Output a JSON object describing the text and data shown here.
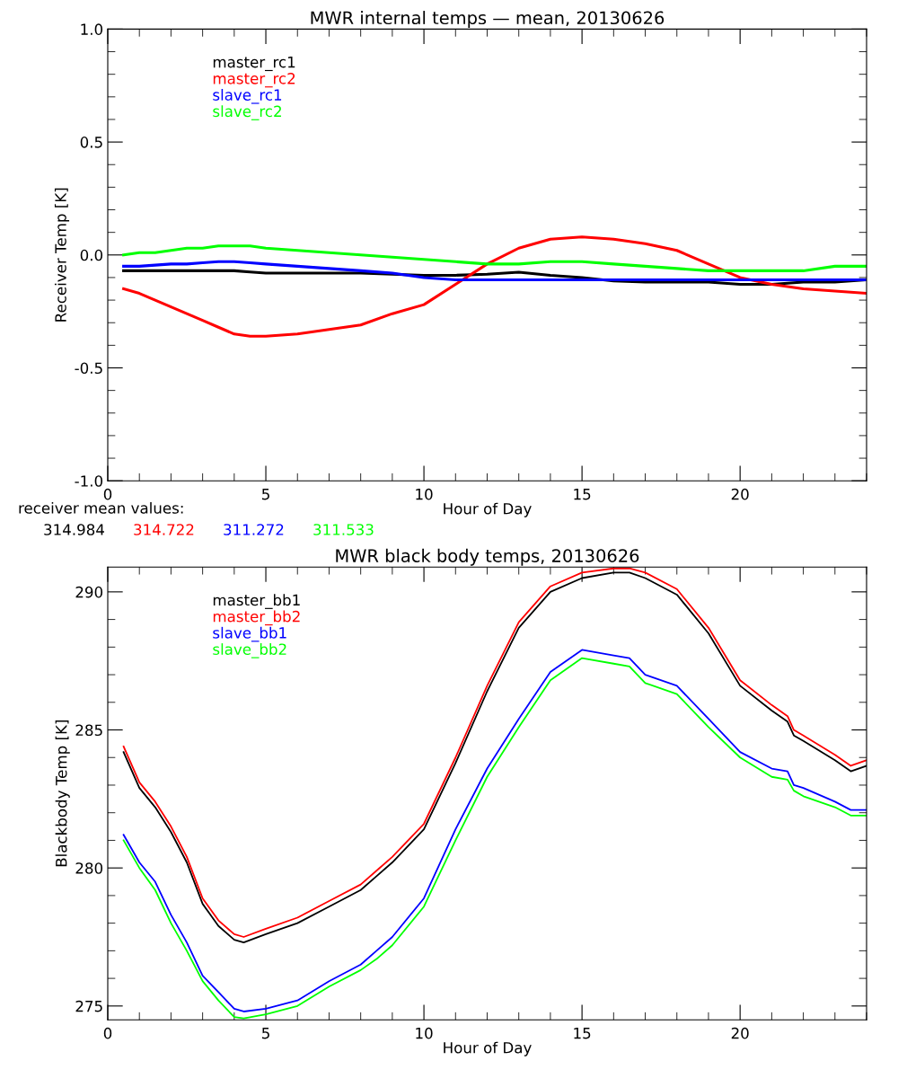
{
  "chart_data": [
    {
      "type": "line",
      "title": "MWR internal temps — mean, 20130626",
      "xlabel": "Hour of Day",
      "ylabel": "Receiver Temp [K]",
      "legend": "top left",
      "grid": false,
      "x": [
        0.5,
        1,
        1.5,
        2,
        2.5,
        3,
        3.5,
        4,
        4.5,
        5,
        6,
        7,
        8,
        9,
        10,
        11,
        12,
        13,
        14,
        15,
        16,
        17,
        18,
        19,
        20,
        21,
        22,
        23,
        24
      ],
      "xlim": [
        0,
        24
      ],
      "ylim": [
        -1.0,
        1.0
      ],
      "xticks": [
        0,
        {
          "value": 1,
          "label": null
        },
        {
          "value": 2,
          "label": null
        },
        {
          "value": 3,
          "label": null
        },
        {
          "value": 4,
          "label": null
        },
        5,
        {
          "value": 6,
          "label": null
        },
        {
          "value": 7,
          "label": null
        },
        {
          "value": 8,
          "label": null
        },
        {
          "value": 9,
          "label": null
        },
        10,
        {
          "value": 11,
          "label": null
        },
        {
          "value": 12,
          "label": null
        },
        {
          "value": 13,
          "label": null
        },
        {
          "value": 14,
          "label": null
        },
        15,
        {
          "value": 16,
          "label": null
        },
        {
          "value": 17,
          "label": null
        },
        {
          "value": 18,
          "label": null
        },
        {
          "value": 19,
          "label": null
        },
        20,
        {
          "value": 21,
          "label": null
        },
        {
          "value": 22,
          "label": null
        },
        {
          "value": 23,
          "label": null
        },
        {
          "value": 24,
          "label": null
        }
      ],
      "yticks": [
        {
          "value": -1.0,
          "label": "-1.0"
        },
        {
          "value": -0.9,
          "label": null
        },
        {
          "value": -0.8,
          "label": null
        },
        {
          "value": -0.7,
          "label": null
        },
        {
          "value": -0.6,
          "label": null
        },
        {
          "value": -0.5,
          "label": "-0.5"
        },
        {
          "value": -0.4,
          "label": null
        },
        {
          "value": -0.3,
          "label": null
        },
        {
          "value": -0.2,
          "label": null
        },
        {
          "value": -0.1,
          "label": null
        },
        {
          "value": 0.0,
          "label": "0.0"
        },
        {
          "value": 0.1,
          "label": null
        },
        {
          "value": 0.2,
          "label": null
        },
        {
          "value": 0.3,
          "label": null
        },
        {
          "value": 0.4,
          "label": null
        },
        {
          "value": 0.5,
          "label": "0.5"
        },
        {
          "value": 0.6,
          "label": null
        },
        {
          "value": 0.7,
          "label": null
        },
        {
          "value": 0.8,
          "label": null
        },
        {
          "value": 0.9,
          "label": null
        },
        {
          "value": 1.0,
          "label": "1.0"
        }
      ],
      "annotations": [
        "receiver mean values:",
        "314.984",
        "314.722",
        "311.272",
        "311.533"
      ],
      "series": [
        {
          "name": "master_rc1",
          "color": "#000000",
          "values": [
            -0.07,
            -0.07,
            -0.07,
            -0.07,
            -0.07,
            -0.07,
            -0.07,
            -0.07,
            -0.075,
            -0.08,
            -0.08,
            -0.08,
            -0.08,
            -0.085,
            -0.09,
            -0.09,
            -0.085,
            -0.076,
            -0.09,
            -0.1,
            -0.115,
            -0.12,
            -0.12,
            -0.12,
            -0.13,
            -0.13,
            -0.12,
            -0.12,
            -0.11
          ]
        },
        {
          "name": "master_rc2",
          "color": "#ff0000",
          "values": [
            -0.15,
            -0.17,
            -0.2,
            -0.23,
            -0.26,
            -0.29,
            -0.32,
            -0.35,
            -0.36,
            -0.36,
            -0.35,
            -0.33,
            -0.31,
            -0.26,
            -0.22,
            -0.13,
            -0.04,
            0.03,
            0.07,
            0.08,
            0.07,
            0.05,
            0.02,
            -0.04,
            -0.1,
            -0.13,
            -0.15,
            -0.16,
            -0.17
          ]
        },
        {
          "name": "slave_rc1",
          "color": "#0000ff",
          "values": [
            -0.05,
            -0.05,
            -0.045,
            -0.04,
            -0.04,
            -0.035,
            -0.03,
            -0.03,
            -0.035,
            -0.04,
            -0.05,
            -0.06,
            -0.07,
            -0.08,
            -0.1,
            -0.11,
            -0.11,
            -0.11,
            -0.11,
            -0.11,
            -0.11,
            -0.11,
            -0.11,
            -0.11,
            -0.11,
            -0.11,
            -0.11,
            -0.11,
            -0.11
          ]
        },
        {
          "name": "slave_rc2",
          "color": "#00ff00",
          "values": [
            0.0,
            0.01,
            0.01,
            0.02,
            0.03,
            0.03,
            0.04,
            0.04,
            0.04,
            0.03,
            0.02,
            0.01,
            0.0,
            -0.01,
            -0.02,
            -0.03,
            -0.04,
            -0.04,
            -0.03,
            -0.03,
            -0.04,
            -0.05,
            -0.06,
            -0.07,
            -0.07,
            -0.07,
            -0.07,
            -0.05,
            -0.05
          ]
        }
      ]
    },
    {
      "type": "line",
      "title": "MWR black body temps, 20130626",
      "xlabel": "Hour of Day",
      "ylabel": "Blackbody Temp [K]",
      "legend": "top left",
      "grid": false,
      "x": [
        0.5,
        1,
        1.5,
        2,
        2.5,
        3,
        3.5,
        4,
        4.3,
        5,
        6,
        7,
        8,
        8.5,
        9,
        10,
        11,
        12,
        13,
        14,
        15,
        16,
        16.5,
        17,
        18,
        19,
        20,
        21,
        21.5,
        21.7,
        22,
        23,
        23.5,
        24
      ],
      "xlim": [
        0,
        24
      ],
      "ylim": [
        274.5,
        290.9
      ],
      "xticks": [
        0,
        {
          "value": 1,
          "label": null
        },
        {
          "value": 2,
          "label": null
        },
        {
          "value": 3,
          "label": null
        },
        {
          "value": 4,
          "label": null
        },
        5,
        {
          "value": 6,
          "label": null
        },
        {
          "value": 7,
          "label": null
        },
        {
          "value": 8,
          "label": null
        },
        {
          "value": 9,
          "label": null
        },
        10,
        {
          "value": 11,
          "label": null
        },
        {
          "value": 12,
          "label": null
        },
        {
          "value": 13,
          "label": null
        },
        {
          "value": 14,
          "label": null
        },
        15,
        {
          "value": 16,
          "label": null
        },
        {
          "value": 17,
          "label": null
        },
        {
          "value": 18,
          "label": null
        },
        {
          "value": 19,
          "label": null
        },
        20,
        {
          "value": 21,
          "label": null
        },
        {
          "value": 22,
          "label": null
        },
        {
          "value": 23,
          "label": null
        },
        {
          "value": 24,
          "label": null
        }
      ],
      "yticks": [
        275,
        {
          "value": 276,
          "label": null
        },
        {
          "value": 277,
          "label": null
        },
        {
          "value": 278,
          "label": null
        },
        {
          "value": 279,
          "label": null
        },
        280,
        {
          "value": 281,
          "label": null
        },
        {
          "value": 282,
          "label": null
        },
        {
          "value": 283,
          "label": null
        },
        {
          "value": 284,
          "label": null
        },
        285,
        {
          "value": 286,
          "label": null
        },
        {
          "value": 287,
          "label": null
        },
        {
          "value": 288,
          "label": null
        },
        {
          "value": 289,
          "label": null
        },
        290
      ],
      "series": [
        {
          "name": "master_bb1",
          "color": "#000000",
          "values": [
            284.2,
            282.9,
            282.2,
            281.3,
            280.2,
            278.7,
            277.9,
            277.4,
            277.3,
            277.6,
            278.0,
            278.6,
            279.2,
            279.7,
            280.2,
            281.4,
            283.8,
            286.4,
            288.7,
            290.0,
            290.5,
            290.7,
            290.7,
            290.5,
            289.9,
            288.5,
            286.6,
            285.7,
            285.3,
            284.8,
            284.6,
            283.9,
            283.5,
            283.7
          ]
        },
        {
          "name": "master_bb2",
          "color": "#ff0000",
          "values": [
            284.4,
            283.1,
            282.4,
            281.5,
            280.4,
            278.9,
            278.1,
            277.6,
            277.5,
            277.8,
            278.2,
            278.8,
            279.4,
            279.9,
            280.4,
            281.6,
            284.0,
            286.6,
            288.9,
            290.2,
            290.7,
            290.85,
            290.85,
            290.7,
            290.1,
            288.7,
            286.8,
            285.9,
            285.5,
            285.0,
            284.8,
            284.1,
            283.7,
            283.9
          ]
        },
        {
          "name": "slave_bb1",
          "color": "#0000ff",
          "values": [
            281.2,
            280.2,
            279.5,
            278.3,
            277.3,
            276.1,
            275.5,
            274.9,
            274.8,
            274.9,
            275.2,
            275.9,
            276.5,
            277.0,
            277.5,
            278.9,
            281.4,
            283.6,
            285.4,
            287.1,
            287.9,
            287.7,
            287.6,
            287.0,
            286.6,
            285.4,
            284.2,
            283.6,
            283.5,
            283.0,
            282.9,
            282.4,
            282.1,
            282.1
          ]
        },
        {
          "name": "slave_bb2",
          "color": "#00ff00",
          "values": [
            281.0,
            280.0,
            279.2,
            278.0,
            277.0,
            275.9,
            275.2,
            274.6,
            274.55,
            274.7,
            275.0,
            275.7,
            276.3,
            276.7,
            277.2,
            278.6,
            281.0,
            283.3,
            285.1,
            286.8,
            287.6,
            287.4,
            287.3,
            286.7,
            286.3,
            285.1,
            284.0,
            283.3,
            283.2,
            282.8,
            282.6,
            282.2,
            281.9,
            281.9
          ]
        }
      ]
    }
  ]
}
